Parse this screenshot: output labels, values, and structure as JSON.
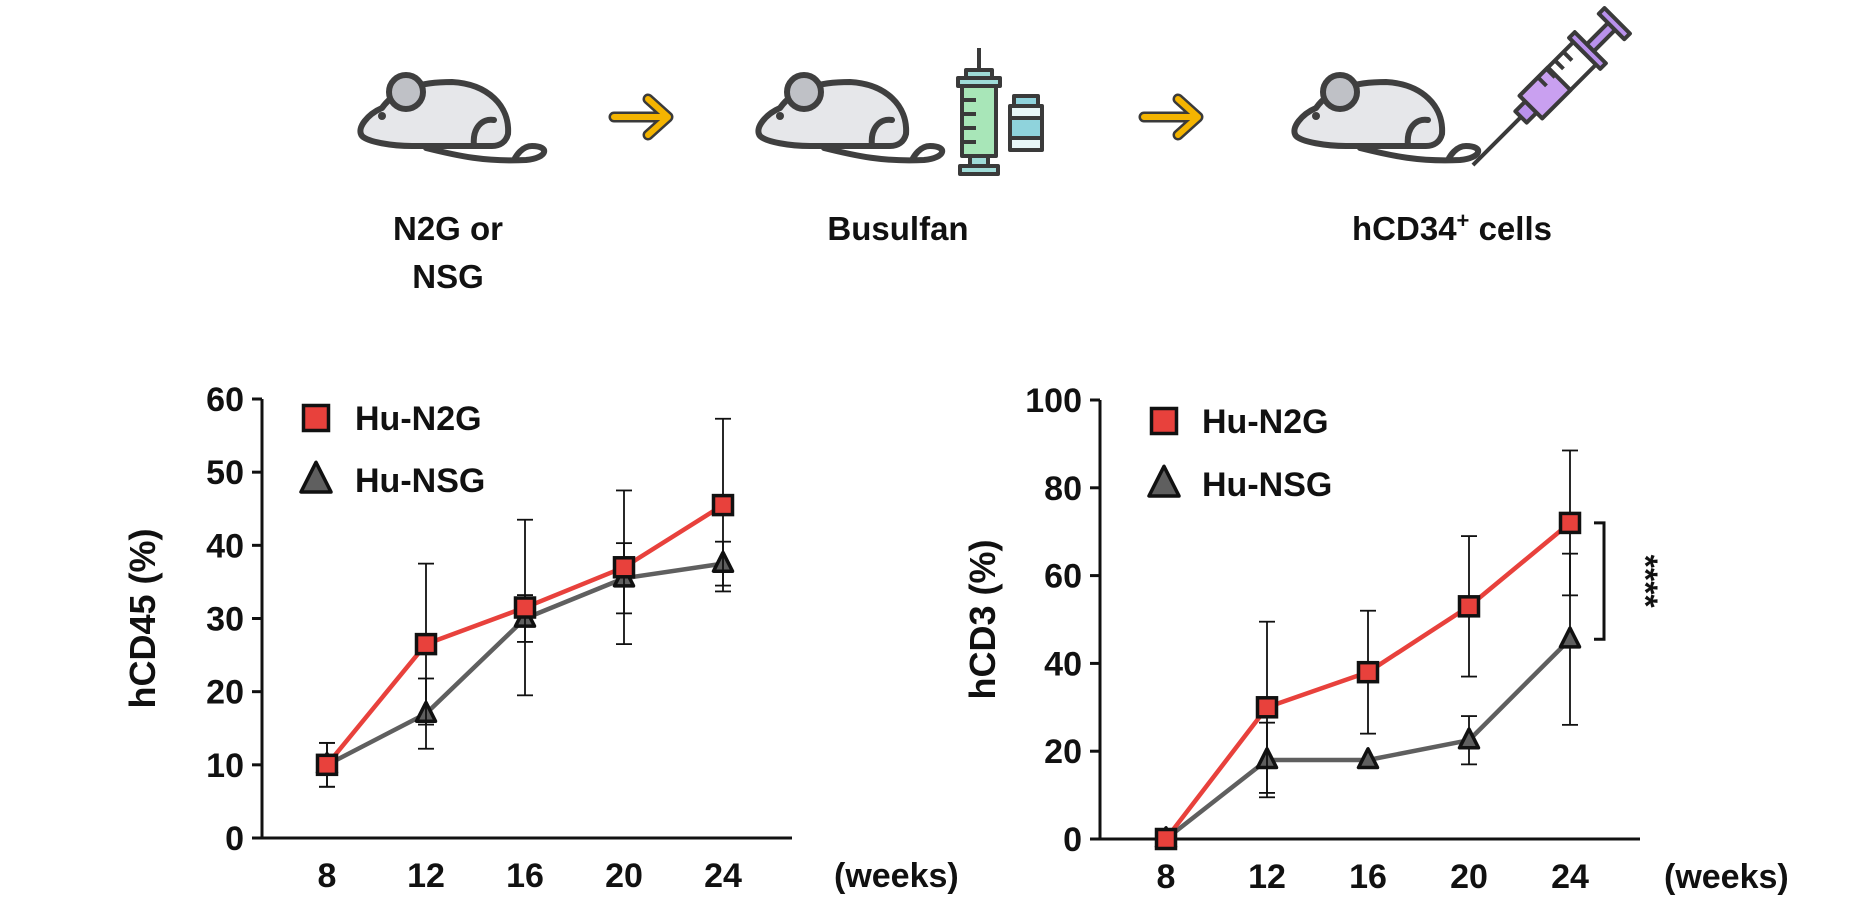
{
  "schematic": {
    "step1_line1": "N2G or",
    "step1_line2": "NSG",
    "step2": "Busulfan",
    "step3_prefix": "hCD34",
    "step3_sup": "+",
    "step3_suffix": " cells",
    "icons": [
      "mouse-icon",
      "arrow-right-icon",
      "syringe-icon",
      "vial-icon"
    ],
    "colors": {
      "mouse": "#e6e7ea",
      "outline": "#3f3f3f",
      "arrow": "#f4b400",
      "busulfan_syringe": "#a8e6b8",
      "vial": "#8fd3dc",
      "cell_syringe": "#c9a0f0"
    }
  },
  "chart_data": [
    {
      "type": "line",
      "ylabel": "hCD45 (%)",
      "xunit": "(weeks)",
      "x": [
        8,
        12,
        16,
        20,
        24
      ],
      "xticks": [
        "8",
        "12",
        "16",
        "20",
        "24"
      ],
      "ylim": [
        0,
        60
      ],
      "yticks": [
        "0",
        "10",
        "20",
        "30",
        "40",
        "50",
        "60"
      ],
      "legend": "top-left",
      "series": [
        {
          "name": "Hu-N2G",
          "marker": "square",
          "color": "#e8413c",
          "values": [
            10,
            26.5,
            31.5,
            37,
            45.5
          ],
          "err": [
            3,
            11,
            12,
            10.5,
            11.8
          ]
        },
        {
          "name": "Hu-NSG",
          "marker": "triangle",
          "color": "#5f5f5f",
          "values": [
            10,
            17,
            30,
            35.5,
            37.5
          ],
          "err": [
            3,
            4.8,
            3.2,
            4.8,
            3
          ]
        }
      ]
    },
    {
      "type": "line",
      "ylabel": "hCD3 (%)",
      "xunit": "(weeks)",
      "x": [
        8,
        12,
        16,
        20,
        24
      ],
      "xticks": [
        "8",
        "12",
        "16",
        "20",
        "24"
      ],
      "ylim": [
        0,
        100
      ],
      "yticks": [
        "0",
        "20",
        "40",
        "60",
        "80",
        "100"
      ],
      "legend": "top-left",
      "significance": "****",
      "series": [
        {
          "name": "Hu-N2G",
          "marker": "square",
          "color": "#e8413c",
          "values": [
            0,
            30,
            38,
            53,
            72
          ],
          "err": [
            0,
            19.5,
            14,
            16,
            16.5
          ]
        },
        {
          "name": "Hu-NSG",
          "marker": "triangle",
          "color": "#5f5f5f",
          "values": [
            0,
            18,
            18,
            22.5,
            45.5
          ],
          "err": [
            0,
            8.5,
            0,
            5.5,
            19.5
          ]
        }
      ]
    }
  ]
}
